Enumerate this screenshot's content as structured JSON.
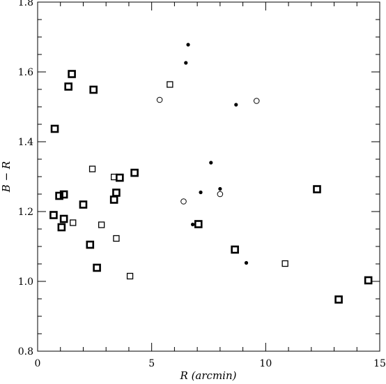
{
  "chart_data": {
    "type": "scatter",
    "title": "",
    "xlabel": "R (arcmin)",
    "ylabel": "B − R",
    "xlim": [
      0,
      15
    ],
    "ylim": [
      0.8,
      1.8
    ],
    "xticks": [
      0,
      5,
      10,
      15
    ],
    "yticks": [
      0.8,
      1.0,
      1.2,
      1.4,
      1.6,
      1.8
    ],
    "xtick_labels": [
      "0",
      "5",
      "10",
      "15"
    ],
    "ytick_labels": [
      "0.8",
      "1.0",
      "1.2",
      "1.4",
      "1.6",
      "1.8"
    ],
    "grid": false,
    "legend": false,
    "series": [
      {
        "marker": "thick-open-square",
        "points": [
          [
            0.75,
            1.437
          ],
          [
            0.95,
            1.245
          ],
          [
            1.15,
            1.249
          ],
          [
            0.7,
            1.19
          ],
          [
            1.05,
            1.155
          ],
          [
            1.15,
            1.179
          ],
          [
            1.35,
            1.558
          ],
          [
            1.5,
            1.594
          ],
          [
            2.0,
            1.22
          ],
          [
            2.3,
            1.105
          ],
          [
            2.45,
            1.549
          ],
          [
            2.6,
            1.039
          ],
          [
            3.35,
            1.234
          ],
          [
            3.45,
            1.254
          ],
          [
            3.6,
            1.297
          ],
          [
            4.25,
            1.311
          ],
          [
            7.05,
            1.164
          ],
          [
            8.65,
            1.091
          ],
          [
            12.25,
            1.264
          ],
          [
            13.2,
            0.948
          ],
          [
            14.5,
            1.003
          ]
        ]
      },
      {
        "marker": "thin-open-square",
        "points": [
          [
            1.55,
            1.168
          ],
          [
            2.4,
            1.322
          ],
          [
            2.8,
            1.162
          ],
          [
            3.35,
            1.299
          ],
          [
            3.45,
            1.123
          ],
          [
            4.05,
            1.015
          ],
          [
            5.8,
            1.564
          ],
          [
            10.85,
            1.051
          ]
        ]
      },
      {
        "marker": "filled-circle",
        "points": [
          [
            6.6,
            1.678
          ],
          [
            6.5,
            1.626
          ],
          [
            8.7,
            1.506
          ],
          [
            7.6,
            1.34
          ],
          [
            7.15,
            1.255
          ],
          [
            8.0,
            1.265
          ],
          [
            6.8,
            1.163
          ],
          [
            9.15,
            1.053
          ]
        ]
      },
      {
        "marker": "open-circle",
        "points": [
          [
            5.35,
            1.52
          ],
          [
            9.6,
            1.517
          ],
          [
            6.4,
            1.229
          ],
          [
            8.0,
            1.25
          ]
        ]
      }
    ]
  }
}
